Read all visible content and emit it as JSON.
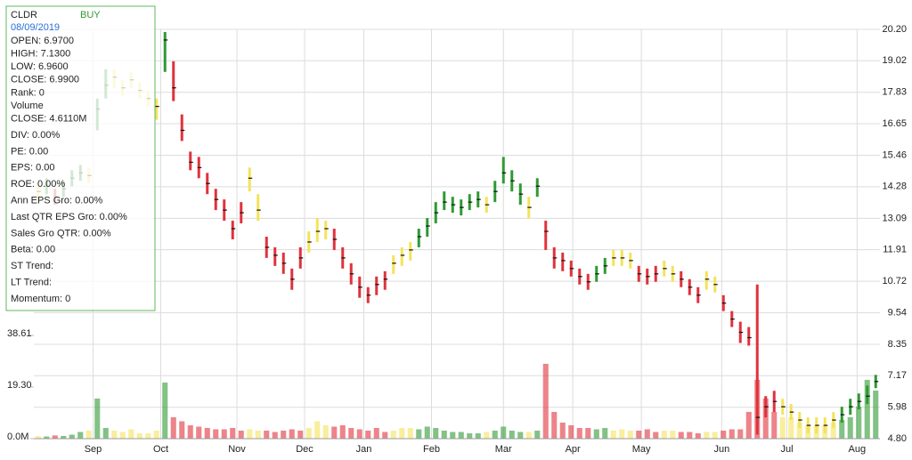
{
  "chart_data": {
    "type": "ohlc",
    "xlim": [
      0,
      100
    ],
    "xticks": [
      {
        "value": 7,
        "label": "Sep"
      },
      {
        "value": 15,
        "label": "Oct"
      },
      {
        "value": 24,
        "label": "Nov"
      },
      {
        "value": 32,
        "label": "Dec"
      },
      {
        "value": 39,
        "label": "Jan"
      },
      {
        "value": 47,
        "label": "Feb"
      },
      {
        "value": 55.5,
        "label": "Mar"
      },
      {
        "value": 63.7,
        "label": "Apr"
      },
      {
        "value": 71.8,
        "label": "May"
      },
      {
        "value": 81.3,
        "label": "Jun"
      },
      {
        "value": 89,
        "label": "Jul"
      },
      {
        "value": 97.3,
        "label": "Aug"
      }
    ],
    "ylim": [
      4.8,
      20.2
    ],
    "yticks": [
      {
        "value": 20.2,
        "label": "20.20"
      },
      19.02,
      17.83,
      16.65,
      15.46,
      14.28,
      13.09,
      11.91,
      10.72,
      9.54,
      8.35,
      7.17,
      5.98,
      {
        "value": 4.8,
        "label": "4.80"
      }
    ],
    "vlim": [
      0,
      38.61
    ],
    "vticks": [
      38.61,
      {
        "value": 19.3,
        "label": "19.30"
      },
      {
        "value": 0,
        "label": "0.0M"
      }
    ],
    "grid": true,
    "colors": [
      "#2f9a33",
      "#e0323c",
      "#f3e35a"
    ],
    "high": [
      14.4,
      14.6,
      14.2,
      14.5,
      14.9,
      15.1,
      15.0,
      17.6,
      18.7,
      18.7,
      18.3,
      18.6,
      18.2,
      17.9,
      17.6,
      20.1,
      19.0,
      17.0,
      15.6,
      15.4,
      14.8,
      14.2,
      13.8,
      13.0,
      13.7,
      15.0,
      14.0,
      12.4,
      12.0,
      11.8,
      11.2,
      12.0,
      12.6,
      13.1,
      13.0,
      12.7,
      12.0,
      11.4,
      10.9,
      10.5,
      10.9,
      11.1,
      11.7,
      12.0,
      12.2,
      12.7,
      13.1,
      13.7,
      14.1,
      13.9,
      13.8,
      14.0,
      14.1,
      13.9,
      14.5,
      15.4,
      14.9,
      14.4,
      13.9,
      14.6,
      13.0,
      12.0,
      11.8,
      11.5,
      11.2,
      11.0,
      11.3,
      11.6,
      11.9,
      11.9,
      11.8,
      11.3,
      11.2,
      11.3,
      11.5,
      11.3,
      11.1,
      10.8,
      10.5,
      11.1,
      10.9,
      10.2,
      9.6,
      9.2,
      9.0,
      10.6,
      6.4,
      6.6,
      6.3,
      6.1,
      5.8,
      5.6,
      5.6,
      5.6,
      5.8,
      6.0,
      6.3,
      6.5,
      6.8,
      7.2
    ],
    "low": [
      13.8,
      14.0,
      13.6,
      13.9,
      14.3,
      14.5,
      14.4,
      16.4,
      17.6,
      18.0,
      17.7,
      18.0,
      17.6,
      17.3,
      16.8,
      18.6,
      17.5,
      16.0,
      14.9,
      14.6,
      14.0,
      13.4,
      13.0,
      12.3,
      12.9,
      14.1,
      13.0,
      11.6,
      11.3,
      11.0,
      10.4,
      11.2,
      11.8,
      12.2,
      12.3,
      11.9,
      11.2,
      10.6,
      10.1,
      9.9,
      10.2,
      10.4,
      11.0,
      11.3,
      11.5,
      12.0,
      12.4,
      12.9,
      13.4,
      13.3,
      13.2,
      13.4,
      13.5,
      13.3,
      13.7,
      14.4,
      14.1,
      13.6,
      13.1,
      13.9,
      11.9,
      11.2,
      11.1,
      10.9,
      10.6,
      10.4,
      10.7,
      11.0,
      11.3,
      11.3,
      11.2,
      10.7,
      10.6,
      10.7,
      10.9,
      10.7,
      10.5,
      10.2,
      9.9,
      10.4,
      10.3,
      9.6,
      9.0,
      8.4,
      8.3,
      4.95,
      5.6,
      5.8,
      5.7,
      5.5,
      5.2,
      5.0,
      5.0,
      5.0,
      5.2,
      5.4,
      5.7,
      5.9,
      6.1,
      6.7
    ],
    "close": [
      14.1,
      14.3,
      13.9,
      14.2,
      14.6,
      14.8,
      14.7,
      17.2,
      18.1,
      18.4,
      18.0,
      18.3,
      17.9,
      17.6,
      17.3,
      19.8,
      18.0,
      16.4,
      15.2,
      15.0,
      14.4,
      13.8,
      13.4,
      12.7,
      13.3,
      14.6,
      13.4,
      12.0,
      11.7,
      11.4,
      10.8,
      11.6,
      12.2,
      12.6,
      12.7,
      12.3,
      11.6,
      11.0,
      10.5,
      10.2,
      10.6,
      10.8,
      11.4,
      11.7,
      11.9,
      12.4,
      12.8,
      13.3,
      13.7,
      13.6,
      13.5,
      13.7,
      13.8,
      13.6,
      14.1,
      14.8,
      14.5,
      14.0,
      13.5,
      14.3,
      12.6,
      11.6,
      11.5,
      11.2,
      10.9,
      10.7,
      11.0,
      11.3,
      11.6,
      11.6,
      11.5,
      11.0,
      10.9,
      11.0,
      11.2,
      11.0,
      10.8,
      10.5,
      10.2,
      10.8,
      10.6,
      9.9,
      9.3,
      8.8,
      8.6,
      5.6,
      6.0,
      6.2,
      6.0,
      5.8,
      5.5,
      5.3,
      5.3,
      5.3,
      5.5,
      5.7,
      6.0,
      6.2,
      6.4,
      6.95
    ],
    "signal": [
      2,
      0,
      1,
      0,
      0,
      0,
      2,
      0,
      0,
      2,
      2,
      2,
      2,
      2,
      2,
      0,
      1,
      1,
      1,
      1,
      1,
      1,
      1,
      1,
      1,
      2,
      2,
      1,
      1,
      1,
      1,
      1,
      2,
      2,
      2,
      1,
      1,
      1,
      1,
      1,
      1,
      1,
      2,
      2,
      2,
      0,
      0,
      0,
      0,
      0,
      0,
      0,
      0,
      2,
      0,
      0,
      0,
      0,
      2,
      0,
      1,
      1,
      1,
      1,
      1,
      1,
      0,
      0,
      2,
      2,
      2,
      1,
      1,
      1,
      2,
      2,
      1,
      1,
      1,
      2,
      2,
      1,
      1,
      1,
      1,
      1,
      1,
      1,
      2,
      2,
      2,
      2,
      2,
      2,
      2,
      0,
      0,
      0,
      0,
      0
    ],
    "volume": [
      1.0,
      0.8,
      1.2,
      1.0,
      1.5,
      2.5,
      3.0,
      15.0,
      4.0,
      3.0,
      2.5,
      3.5,
      2.0,
      2.0,
      3.0,
      21.0,
      8.0,
      6.5,
      5.0,
      4.5,
      4.0,
      3.5,
      3.5,
      4.0,
      3.0,
      3.5,
      3.0,
      3.0,
      2.5,
      3.0,
      3.5,
      3.0,
      4.0,
      6.5,
      5.0,
      4.5,
      5.0,
      4.0,
      3.5,
      3.0,
      4.0,
      2.5,
      3.0,
      4.0,
      4.0,
      3.5,
      4.5,
      4.0,
      3.0,
      2.5,
      2.5,
      2.0,
      2.0,
      2.5,
      3.0,
      4.5,
      3.0,
      2.5,
      2.5,
      3.0,
      28.0,
      10.0,
      6.0,
      5.0,
      4.0,
      4.0,
      3.5,
      4.0,
      3.0,
      3.5,
      3.0,
      3.0,
      3.5,
      2.5,
      3.0,
      3.0,
      2.5,
      2.5,
      2.0,
      2.5,
      2.5,
      3.0,
      3.5,
      3.5,
      10.0,
      22.0,
      15.0,
      10.0,
      8.0,
      8.0,
      6.0,
      5.0,
      5.0,
      5.0,
      6.0,
      7.0,
      8.0,
      12.0,
      22.0,
      18.0
    ]
  },
  "info_panel": {
    "symbol": "CLDR",
    "signal": "BUY",
    "date": "08/09/2019",
    "lines": [
      "OPEN: 6.9700",
      "HIGH: 7.1300",
      "LOW: 6.9600",
      "CLOSE: 6.9900",
      "Rank: 0",
      "Volume",
      "CLOSE: 4.6110M",
      "DIV: 0.00%",
      "PE: 0.00",
      "EPS: 0.00",
      "ROE: 0.00%",
      "Ann EPS Gro: 0.00%",
      "Last QTR EPS Gro: 0.00%",
      "Sales Gro QTR: 0.00%",
      "Beta: 0.00",
      "ST Trend:",
      "LT Trend:",
      "Momentum: 0"
    ]
  }
}
